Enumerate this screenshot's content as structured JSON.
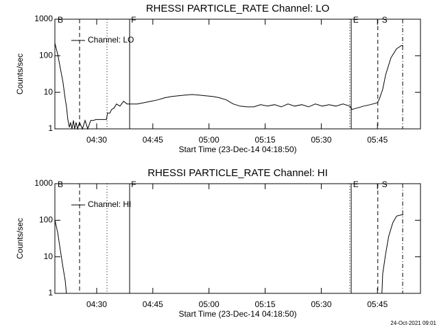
{
  "chart_data": [
    {
      "type": "line",
      "title": "RHESSI PARTICLE_RATE Channel: LO",
      "xlabel": "Start Time (23-Dec-14 04:18:50)",
      "ylabel": "Counts/sec",
      "log_y": true,
      "legend": "upper left",
      "xlim": [
        258.83,
        356.5
      ],
      "ylim": [
        1,
        1000
      ],
      "xticks": [
        {
          "value": 270,
          "label": "04:30"
        },
        {
          "value": 285,
          "label": "04:45"
        },
        {
          "value": 300,
          "label": "05:00"
        },
        {
          "value": 315,
          "label": "05:15"
        },
        {
          "value": 330,
          "label": "05:30"
        },
        {
          "value": 345,
          "label": "05:45"
        }
      ],
      "yticks": [
        1,
        10,
        100,
        1000
      ],
      "markers": [
        {
          "x": 265.43,
          "style": "dashed"
        },
        {
          "x": 272.76,
          "style": "dotted"
        },
        {
          "x": 278.8,
          "style": "solid"
        },
        {
          "x": 337.6,
          "style": "dotted"
        },
        {
          "x": 338.0,
          "style": "solid"
        },
        {
          "x": 345.1,
          "style": "dashed"
        },
        {
          "x": 351.74,
          "style": "dashdot"
        }
      ],
      "flags": [
        {
          "label": "B",
          "x": 259.56
        },
        {
          "label": "F",
          "x": 279.2
        },
        {
          "label": "E",
          "x": 338.5
        },
        {
          "label": "S",
          "x": 346.2
        }
      ],
      "series": [
        {
          "name": "Channel: LO",
          "color": "#000000",
          "x": [
            258.8,
            259.6,
            260.3,
            261.0,
            261.6,
            261.9,
            262.3,
            262.7,
            263.0,
            263.4,
            263.8,
            264.1,
            264.5,
            264.9,
            265.4,
            266.2,
            266.9,
            267.6,
            268.4,
            269.1,
            269.8,
            271.7,
            272.6,
            272.9,
            273.5,
            274.0,
            274.6,
            275.3,
            276.2,
            277.2,
            278.1,
            279.0,
            280.8,
            282.7,
            284.5,
            286.3,
            288.2,
            290.0,
            291.8,
            293.6,
            295.5,
            297.3,
            299.1,
            301.0,
            302.8,
            304.6,
            306.5,
            308.3,
            310.1,
            312.0,
            313.8,
            315.6,
            317.5,
            319.3,
            321.1,
            322.9,
            324.8,
            326.6,
            328.4,
            330.3,
            332.1,
            333.9,
            335.8,
            337.6,
            338.2,
            339.5,
            341.3,
            343.1,
            345.0,
            345.5,
            346.4,
            347.2,
            348.6,
            350.1,
            351.4,
            351.9
          ],
          "values": [
            230,
            108,
            45,
            19,
            6.5,
            4.2,
            1.8,
            1.1,
            1.5,
            1,
            1.7,
            1,
            1.5,
            1,
            1.5,
            1,
            1.7,
            1,
            1.7,
            1.7,
            1.8,
            1.8,
            1.8,
            2.7,
            2.7,
            3.4,
            3.7,
            4.8,
            4.2,
            5.7,
            4.8,
            4.8,
            4.8,
            5.2,
            5.7,
            6.2,
            7.1,
            7.7,
            8,
            8.4,
            8.7,
            8.4,
            8,
            7.7,
            7.1,
            6.2,
            4.8,
            4.2,
            4,
            4,
            4.6,
            4.2,
            4.6,
            4,
            4.8,
            4.2,
            4.6,
            4,
            4.8,
            4.2,
            4.6,
            4.2,
            4.8,
            4.2,
            3.4,
            3.7,
            4.2,
            4.6,
            5.2,
            6.5,
            12,
            30,
            88,
            155,
            190,
            190
          ]
        }
      ]
    },
    {
      "type": "line",
      "title": "RHESSI PARTICLE_RATE Channel: HI",
      "xlabel": "Start Time (23-Dec-14 04:18:50)",
      "ylabel": "Counts/sec",
      "log_y": true,
      "legend": "upper left",
      "xlim": [
        258.83,
        356.5
      ],
      "ylim": [
        1,
        1000
      ],
      "xticks": [
        {
          "value": 270,
          "label": "04:30"
        },
        {
          "value": 285,
          "label": "04:45"
        },
        {
          "value": 300,
          "label": "05:00"
        },
        {
          "value": 315,
          "label": "05:15"
        },
        {
          "value": 330,
          "label": "05:30"
        },
        {
          "value": 345,
          "label": "05:45"
        }
      ],
      "yticks": [
        1,
        10,
        100,
        1000
      ],
      "markers": [
        {
          "x": 265.43,
          "style": "dashed"
        },
        {
          "x": 272.76,
          "style": "dotted"
        },
        {
          "x": 278.8,
          "style": "solid"
        },
        {
          "x": 337.6,
          "style": "dotted"
        },
        {
          "x": 338.0,
          "style": "solid"
        },
        {
          "x": 345.1,
          "style": "dashed"
        },
        {
          "x": 351.74,
          "style": "dashdot"
        }
      ],
      "flags": [
        {
          "label": "B",
          "x": 259.56
        },
        {
          "label": "F",
          "x": 279.2
        },
        {
          "label": "E",
          "x": 338.5
        },
        {
          "label": "S",
          "x": 346.2
        }
      ],
      "series": [
        {
          "name": "Channel: HI",
          "color": "#000000",
          "x": [
            258.8,
            259.6,
            260.3,
            261.0,
            261.6,
            261.9,
            300.0,
            346.2,
            346.4,
            347.2,
            348.0,
            349.1,
            350.1,
            351.4,
            351.9
          ],
          "values": [
            106,
            45,
            15,
            5.2,
            2.2,
            1,
            null,
            1,
            3.4,
            12,
            36,
            85,
            130,
            140,
            140
          ]
        }
      ]
    }
  ],
  "footer": "24-Oct-2021 09:01"
}
